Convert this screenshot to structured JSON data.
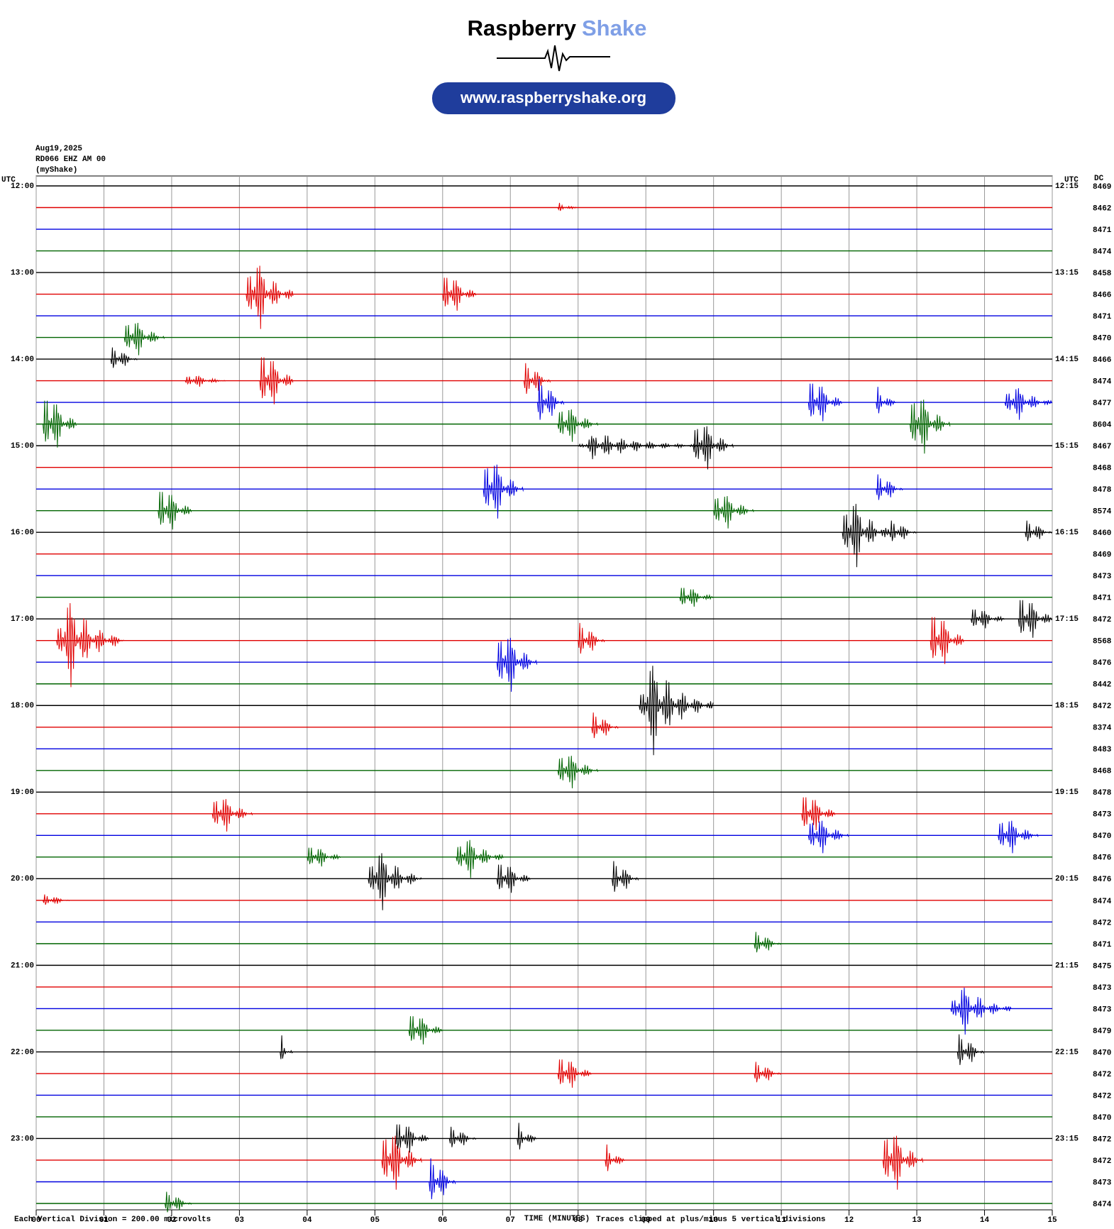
{
  "header": {
    "brand_1": "Raspberry",
    "brand_2": "Shake",
    "url": "www.raspberryshake.org"
  },
  "chart_data": {
    "type": "helicorder",
    "date": "Aug19,2025",
    "station": "RD066 EHZ AM 00",
    "source": "(myShake)",
    "left_axis_label": "UTC",
    "right_axis_label": "UTC",
    "dc_label": "DC",
    "xlabel": "TIME (MINUTES)",
    "scale_note": "Each Vertical Division =  200.00 microvolts",
    "clip_note": "Traces clipped at plus/minus 5 vertical divisions",
    "xlim": [
      0,
      15
    ],
    "xticks": [
      {
        "value": 0,
        "label": "00"
      },
      {
        "value": 1,
        "label": "01"
      },
      {
        "value": 2,
        "label": "02"
      },
      {
        "value": 3,
        "label": "03"
      },
      {
        "value": 4,
        "label": "04"
      },
      {
        "value": 5,
        "label": "05"
      },
      {
        "value": 6,
        "label": "06"
      },
      {
        "value": 7,
        "label": "07"
      },
      {
        "value": 8,
        "label": "08"
      },
      {
        "value": 9,
        "label": "09"
      },
      10,
      11,
      12,
      13,
      14,
      15
    ],
    "left_times": [
      "12:00",
      "13:00",
      "14:00",
      "15:00",
      "16:00",
      "17:00",
      "18:00",
      "19:00",
      "20:00",
      "21:00",
      "22:00",
      "23:00"
    ],
    "right_times": [
      "12:15",
      "13:15",
      "14:15",
      "15:15",
      "16:15",
      "17:15",
      "18:15",
      "19:15",
      "20:15",
      "21:15",
      "22:15",
      "23:15"
    ],
    "colors": [
      "#000000",
      "#e00000",
      "#0000e0",
      "#006400"
    ],
    "dc": [
      8469,
      8462,
      8471,
      8474,
      8458,
      8466,
      8471,
      8470,
      8466,
      8474,
      8477,
      8604,
      8467,
      8468,
      8478,
      8574,
      8460,
      8469,
      8473,
      8471,
      8472,
      8568,
      8476,
      8442,
      8472,
      8374,
      8483,
      8468,
      8478,
      8473,
      8470,
      8476,
      8476,
      8474,
      8472,
      8471,
      8475,
      8473,
      8473,
      8479,
      8470,
      8472,
      8472,
      8470,
      8472,
      8472,
      8473,
      8474
    ],
    "events": [
      {
        "row": 1,
        "minute": 7.7,
        "amplitude": 0.6,
        "duration": 0.3
      },
      {
        "row": 5,
        "minute": 3.1,
        "amplitude": 5,
        "duration": 0.7
      },
      {
        "row": 5,
        "minute": 6.0,
        "amplitude": 3.5,
        "duration": 0.5
      },
      {
        "row": 7,
        "minute": 1.3,
        "amplitude": 3,
        "duration": 0.6
      },
      {
        "row": 8,
        "minute": 1.1,
        "amplitude": 2,
        "duration": 0.4
      },
      {
        "row": 9,
        "minute": 3.3,
        "amplitude": 5,
        "duration": 0.5
      },
      {
        "row": 9,
        "minute": 7.2,
        "amplitude": 3,
        "duration": 0.4
      },
      {
        "row": 9,
        "minute": 2.2,
        "amplitude": 1,
        "duration": 0.6
      },
      {
        "row": 10,
        "minute": 7.4,
        "amplitude": 4,
        "duration": 0.4
      },
      {
        "row": 10,
        "minute": 11.4,
        "amplitude": 4,
        "duration": 0.5
      },
      {
        "row": 10,
        "minute": 14.3,
        "amplitude": 2.5,
        "duration": 1.2
      },
      {
        "row": 10,
        "minute": 12.4,
        "amplitude": 2,
        "duration": 0.3
      },
      {
        "row": 11,
        "minute": 0.1,
        "amplitude": 5,
        "duration": 0.5
      },
      {
        "row": 11,
        "minute": 7.7,
        "amplitude": 3,
        "duration": 0.6
      },
      {
        "row": 11,
        "minute": 12.9,
        "amplitude": 5,
        "duration": 0.6
      },
      {
        "row": 12,
        "minute": 9.7,
        "amplitude": 4,
        "duration": 0.6
      },
      {
        "row": 12,
        "minute": 8.0,
        "amplitude": 1.2,
        "duration": 2
      },
      {
        "row": 14,
        "minute": 6.6,
        "amplitude": 5,
        "duration": 0.6
      },
      {
        "row": 14,
        "minute": 12.4,
        "amplitude": 2.5,
        "duration": 0.4
      },
      {
        "row": 15,
        "minute": 1.8,
        "amplitude": 4,
        "duration": 0.5
      },
      {
        "row": 15,
        "minute": 10.0,
        "amplitude": 3,
        "duration": 0.6
      },
      {
        "row": 16,
        "minute": 11.9,
        "amplitude": 5,
        "duration": 0.7
      },
      {
        "row": 16,
        "minute": 14.6,
        "amplitude": 2,
        "duration": 0.6
      },
      {
        "row": 16,
        "minute": 12.6,
        "amplitude": 2,
        "duration": 0.4
      },
      {
        "row": 19,
        "minute": 9.5,
        "amplitude": 2,
        "duration": 0.5
      },
      {
        "row": 20,
        "minute": 14.5,
        "amplitude": 4,
        "duration": 0.5
      },
      {
        "row": 20,
        "minute": 13.8,
        "amplitude": 2,
        "duration": 0.5
      },
      {
        "row": 21,
        "minute": 0.3,
        "amplitude": 5,
        "duration": 1
      },
      {
        "row": 21,
        "minute": 8.0,
        "amplitude": 3,
        "duration": 0.4
      },
      {
        "row": 21,
        "minute": 13.2,
        "amplitude": 5,
        "duration": 0.5
      },
      {
        "row": 22,
        "minute": 6.8,
        "amplitude": 5,
        "duration": 0.6
      },
      {
        "row": 24,
        "minute": 8.9,
        "amplitude": 5,
        "duration": 1.1
      },
      {
        "row": 25,
        "minute": 8.2,
        "amplitude": 2.5,
        "duration": 0.4
      },
      {
        "row": 27,
        "minute": 7.7,
        "amplitude": 3,
        "duration": 0.6
      },
      {
        "row": 29,
        "minute": 2.6,
        "amplitude": 3,
        "duration": 0.6
      },
      {
        "row": 29,
        "minute": 11.3,
        "amplitude": 3.5,
        "duration": 0.5
      },
      {
        "row": 30,
        "minute": 11.4,
        "amplitude": 3,
        "duration": 0.6
      },
      {
        "row": 30,
        "minute": 14.2,
        "amplitude": 3,
        "duration": 0.6
      },
      {
        "row": 31,
        "minute": 4.0,
        "amplitude": 2,
        "duration": 0.5
      },
      {
        "row": 31,
        "minute": 6.2,
        "amplitude": 3,
        "duration": 0.7
      },
      {
        "row": 32,
        "minute": 4.9,
        "amplitude": 4,
        "duration": 0.8
      },
      {
        "row": 32,
        "minute": 6.8,
        "amplitude": 3,
        "duration": 0.5
      },
      {
        "row": 32,
        "minute": 8.5,
        "amplitude": 3,
        "duration": 0.4
      },
      {
        "row": 33,
        "minute": 0.1,
        "amplitude": 1,
        "duration": 0.4
      },
      {
        "row": 35,
        "minute": 10.6,
        "amplitude": 2,
        "duration": 0.4
      },
      {
        "row": 38,
        "minute": 13.5,
        "amplitude": 3,
        "duration": 0.9
      },
      {
        "row": 39,
        "minute": 5.5,
        "amplitude": 3,
        "duration": 0.5
      },
      {
        "row": 40,
        "minute": 3.6,
        "amplitude": 1.5,
        "duration": 0.2
      },
      {
        "row": 40,
        "minute": 13.6,
        "amplitude": 3,
        "duration": 0.4
      },
      {
        "row": 41,
        "minute": 7.7,
        "amplitude": 3,
        "duration": 0.5
      },
      {
        "row": 41,
        "minute": 10.6,
        "amplitude": 2,
        "duration": 0.4
      },
      {
        "row": 44,
        "minute": 5.3,
        "amplitude": 3,
        "duration": 0.5
      },
      {
        "row": 44,
        "minute": 6.1,
        "amplitude": 2,
        "duration": 0.4
      },
      {
        "row": 44,
        "minute": 7.1,
        "amplitude": 2,
        "duration": 0.3
      },
      {
        "row": 45,
        "minute": 5.1,
        "amplitude": 5,
        "duration": 0.6
      },
      {
        "row": 45,
        "minute": 12.5,
        "amplitude": 5,
        "duration": 0.6
      },
      {
        "row": 45,
        "minute": 8.4,
        "amplitude": 2,
        "duration": 0.3
      },
      {
        "row": 46,
        "minute": 5.8,
        "amplitude": 4,
        "duration": 0.4
      },
      {
        "row": 47,
        "minute": 1.9,
        "amplitude": 2,
        "duration": 0.4
      }
    ]
  }
}
